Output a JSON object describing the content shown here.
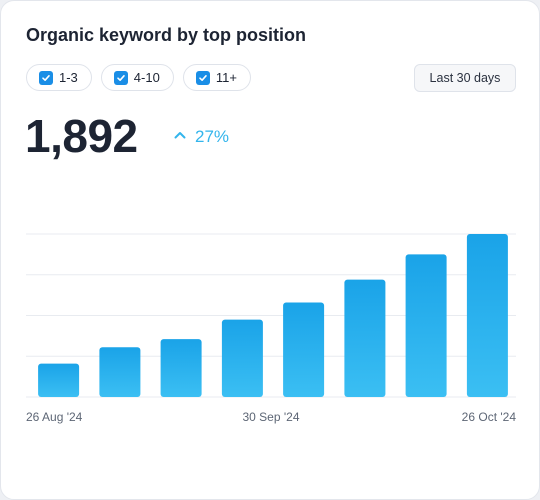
{
  "widget": {
    "title": "Organic keyword by top position",
    "filters": [
      {
        "label": "1-3",
        "checked": true
      },
      {
        "label": "4-10",
        "checked": true
      },
      {
        "label": "11+",
        "checked": true
      }
    ],
    "date_range_label": "Last 30 days",
    "kpi_value": "1,892",
    "change_icon": "chevron-up-icon",
    "change_value": "27%"
  },
  "colors": {
    "accent": "#33b5ec",
    "bar_top": "#1aa3e8",
    "bar_bottom": "#3bbff3",
    "checkbox": "#1a8ee6"
  },
  "chart_data": {
    "type": "bar",
    "x_tick_labels": [
      "26 Aug '24",
      "30 Sep '24",
      "26 Oct '24"
    ],
    "values": [
      82,
      122,
      142,
      190,
      232,
      288,
      350,
      400
    ],
    "ylim": [
      0,
      400
    ],
    "grid": true,
    "legend": "none"
  }
}
